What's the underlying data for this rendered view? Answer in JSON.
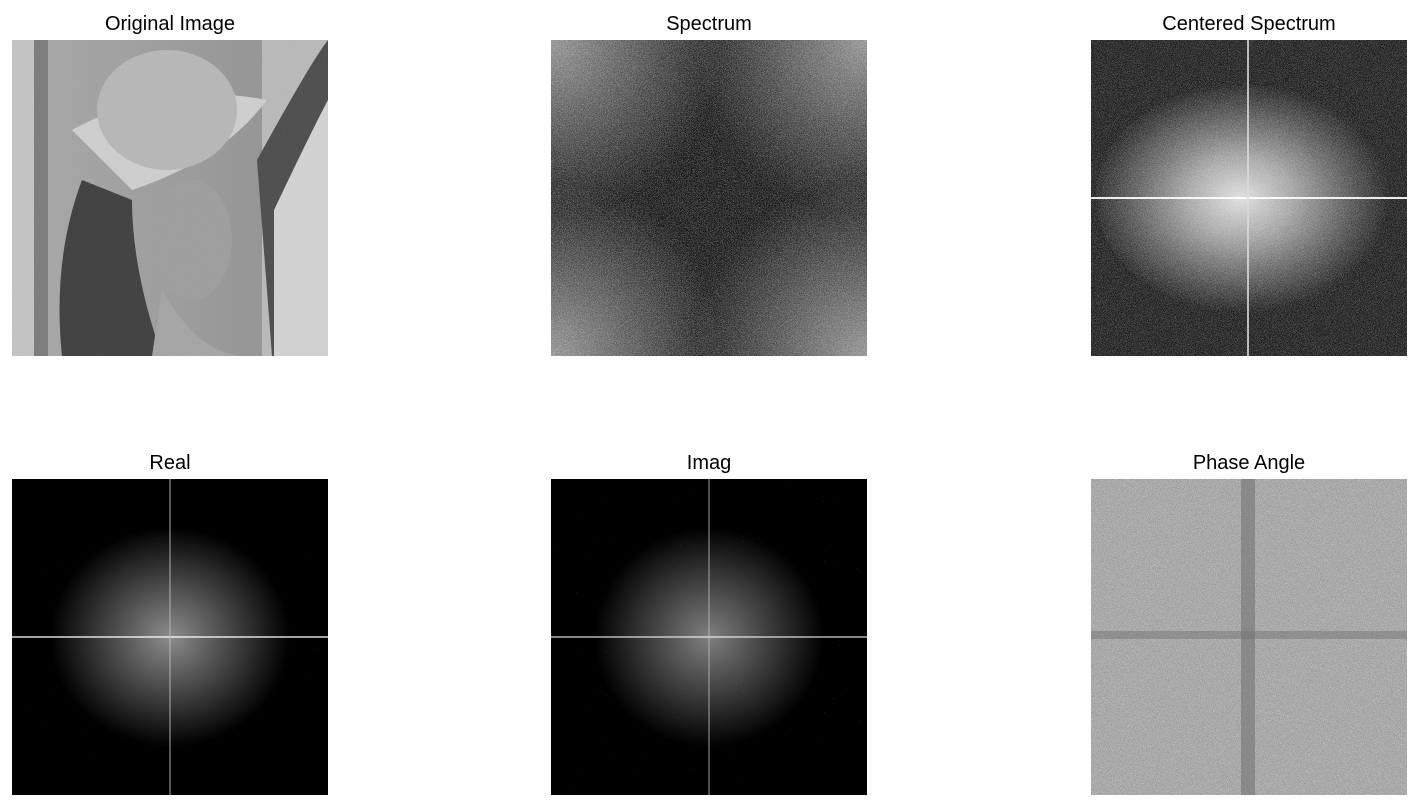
{
  "figure": {
    "panels": [
      {
        "id": "original-image",
        "title": "Original Image",
        "content": "grayscale portrait photo"
      },
      {
        "id": "spectrum",
        "title": "Spectrum",
        "content": "uncentered log magnitude spectrum, bright corners"
      },
      {
        "id": "centered-spectrum",
        "title": "Centered Spectrum",
        "content": "log magnitude spectrum, bright center"
      },
      {
        "id": "real",
        "title": "Real",
        "content": "real part of spectrum, sparse noise"
      },
      {
        "id": "imag",
        "title": "Imag",
        "content": "imaginary part of spectrum, sparse noise"
      },
      {
        "id": "phase-angle",
        "title": "Phase Angle",
        "content": "phase angle, dense random noise"
      }
    ]
  },
  "colors": {
    "background": "#ffffff",
    "white": "#ffffff",
    "black": "#000000",
    "gray": "#8a8a8a"
  }
}
